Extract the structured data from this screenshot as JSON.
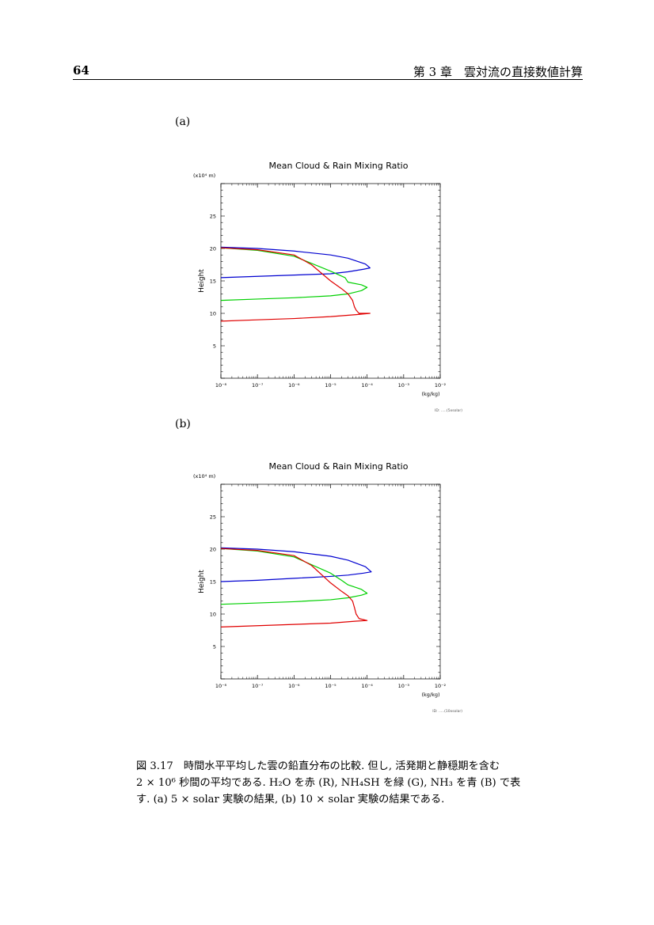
{
  "header": {
    "page_number": "64",
    "chapter": "第 3 章　雲対流の直接数値計算"
  },
  "panels": [
    {
      "label": "(a)",
      "footer": "ID:   .....(5xsolar)"
    },
    {
      "label": "(b)",
      "footer": "ID:   .....(10xsolar)"
    }
  ],
  "caption": {
    "line1": "図 3.17　時間水平平均した雲の鉛直分布の比較.  但し, 活発期と静穏期を含む",
    "line2": "2 × 10⁶ 秒間の平均である. H₂O を赤 (R), NH₄SH を緑 (G), NH₃ を青 (B) で表",
    "line3": "す. (a) 5 × solar 実験の結果, (b) 10 × solar 実験の結果である."
  },
  "chart_data": [
    {
      "type": "line",
      "title": "Mean Cloud & Rain Mixing Ratio",
      "ylabel": "Height",
      "yunit": "(x10⁴ m)",
      "xunit": "(kg/kg)",
      "xscale": "log",
      "xlim": [
        1e-08,
        0.01
      ],
      "ylim": [
        0,
        30
      ],
      "xticks": [
        "10⁻⁸",
        "10⁻⁷",
        "10⁻⁶",
        "10⁻⁵",
        "10⁻⁴",
        "10⁻³",
        "10⁻²"
      ],
      "yticks": [
        "5",
        "10",
        "15",
        "20",
        "25"
      ],
      "colors": {
        "red": "#e00000",
        "green": "#00d000",
        "blue": "#0000d0"
      },
      "series": [
        {
          "color": "blue",
          "x": [
            1e-08,
            1e-07,
            1e-06,
            1e-05,
            3e-05,
            8e-05,
            0.00012,
            9e-05,
            3e-05,
            1e-05,
            1e-06,
            1e-07,
            1e-08
          ],
          "y": [
            15.5,
            15.7,
            15.9,
            16.1,
            16.4,
            16.8,
            17.0,
            17.6,
            18.5,
            19.0,
            19.6,
            20.0,
            20.2
          ]
        },
        {
          "color": "green",
          "x": [
            1e-08,
            1e-07,
            1e-06,
            1e-05,
            3e-05,
            7e-05,
            0.0001,
            7e-05,
            3e-05,
            2.5e-05,
            1e-05,
            1e-06,
            1e-07,
            1e-08
          ],
          "y": [
            12.0,
            12.2,
            12.4,
            12.7,
            13.0,
            13.5,
            14.0,
            14.4,
            14.8,
            15.5,
            16.5,
            18.8,
            19.7,
            20.1
          ]
        },
        {
          "color": "red",
          "x": [
            1e-08,
            1e-07,
            1e-06,
            1e-05,
            5e-05,
            0.00012,
            6e-05,
            5e-05,
            4.5e-05,
            4e-05,
            3e-05,
            2e-05,
            1e-05,
            3e-06,
            1e-06,
            1e-07,
            1e-08
          ],
          "y": [
            8.8,
            9.0,
            9.2,
            9.5,
            9.8,
            10.0,
            10.0,
            10.5,
            11.0,
            12.0,
            13.0,
            13.8,
            15.0,
            17.5,
            19.0,
            19.8,
            20.1
          ]
        }
      ]
    },
    {
      "type": "line",
      "title": "Mean Cloud & Rain Mixing Ratio",
      "ylabel": "Height",
      "yunit": "(x10⁴ m)",
      "xunit": "(kg/kg)",
      "xscale": "log",
      "xlim": [
        1e-08,
        0.01
      ],
      "ylim": [
        0,
        30
      ],
      "xticks": [
        "10⁻⁸",
        "10⁻⁷",
        "10⁻⁶",
        "10⁻⁵",
        "10⁻⁴",
        "10⁻³",
        "10⁻²"
      ],
      "yticks": [
        "5",
        "10",
        "15",
        "20",
        "25"
      ],
      "colors": {
        "red": "#e00000",
        "green": "#00d000",
        "blue": "#0000d0"
      },
      "series": [
        {
          "color": "blue",
          "x": [
            1e-08,
            1e-07,
            1e-06,
            1e-05,
            3e-05,
            8e-05,
            0.00013,
            9e-05,
            3e-05,
            1e-05,
            1e-06,
            1e-07,
            1e-08
          ],
          "y": [
            15.0,
            15.2,
            15.5,
            15.8,
            16.0,
            16.3,
            16.5,
            17.3,
            18.3,
            18.9,
            19.6,
            20.0,
            20.2
          ]
        },
        {
          "color": "green",
          "x": [
            1e-08,
            1e-07,
            1e-06,
            1e-05,
            3e-05,
            7e-05,
            0.0001,
            7e-05,
            3e-05,
            2e-05,
            1e-05,
            1e-06,
            1e-07,
            1e-08
          ],
          "y": [
            11.5,
            11.7,
            11.9,
            12.2,
            12.5,
            12.9,
            13.2,
            13.8,
            14.5,
            15.2,
            16.3,
            18.8,
            19.7,
            20.1
          ]
        },
        {
          "color": "red",
          "x": [
            1e-08,
            1e-07,
            1e-06,
            1e-05,
            5e-05,
            0.0001,
            6e-05,
            5e-05,
            4.5e-05,
            4e-05,
            3e-05,
            2e-05,
            1e-05,
            3e-06,
            1e-06,
            1e-07,
            1e-08
          ],
          "y": [
            8.0,
            8.2,
            8.4,
            8.6,
            8.9,
            9.0,
            9.3,
            10.0,
            11.0,
            12.0,
            12.8,
            13.5,
            14.8,
            17.5,
            19.0,
            19.8,
            20.1
          ]
        }
      ]
    }
  ]
}
